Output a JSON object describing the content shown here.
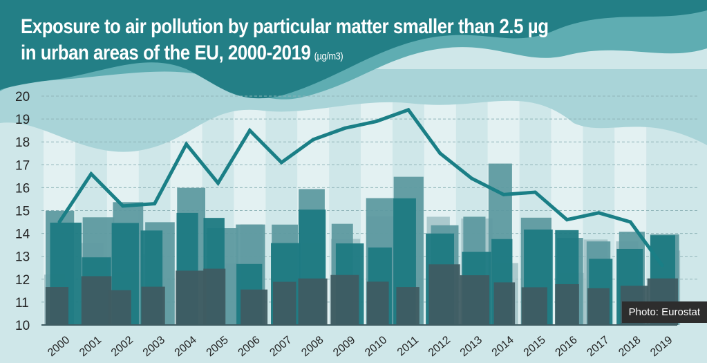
{
  "title_line1": "Exposure to air pollution by particular matter smaller than 2.5 µg",
  "title_line2": "in urban areas of the EU, 2000-2019",
  "unit": "(µg/m3)",
  "credit": "Photo: Eurostat",
  "colors": {
    "line": "#1a7f86",
    "banner": "#2a8a8f",
    "background": "#cfe7e9",
    "skyline_dark": "#3f5c62",
    "skyline_teal": "#1d7a82"
  },
  "chart_data": {
    "type": "line",
    "title": "Exposure to air pollution by particular matter smaller than 2.5 µg in urban areas of the EU, 2000-2019",
    "ylabel": "(µg/m3)",
    "ylim": [
      10,
      20
    ],
    "yticks": [
      "10",
      "11",
      "12",
      "13",
      "14",
      "15",
      "16",
      "17",
      "18",
      "19",
      "20"
    ],
    "grid": true,
    "categories": [
      "2000",
      "2001",
      "2002",
      "2003",
      "2004",
      "2005",
      "2006",
      "2007",
      "2008",
      "2009",
      "2010",
      "2011",
      "2012",
      "2013",
      "2014",
      "2015",
      "2016",
      "2017",
      "2018",
      "2019"
    ],
    "values": [
      14.5,
      16.6,
      15.2,
      15.3,
      17.9,
      16.2,
      18.5,
      17.1,
      18.1,
      18.6,
      18.9,
      19.4,
      17.5,
      16.4,
      15.7,
      15.8,
      14.6,
      14.9,
      14.5,
      12.6
    ]
  }
}
